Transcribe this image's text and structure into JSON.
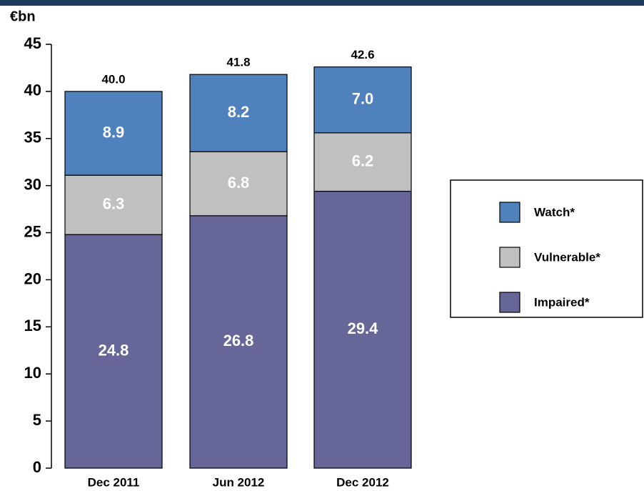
{
  "chart_data": {
    "type": "stacked_bar",
    "y_label": "€bn",
    "categories": [
      "Dec 2011",
      "Jun 2012",
      "Dec 2012"
    ],
    "series": [
      {
        "name": "Impaired*",
        "color": "#666699",
        "values": [
          24.8,
          26.8,
          29.4
        ],
        "value_labels": [
          "24.8",
          "26.8",
          "29.4"
        ]
      },
      {
        "name": "Vulnerable*",
        "color": "#c0c0c0",
        "values": [
          6.3,
          6.8,
          6.2
        ],
        "value_labels": [
          "6.3",
          "6.8",
          "6.2"
        ]
      },
      {
        "name": "Watch*",
        "color": "#4f81bd",
        "values": [
          8.9,
          8.2,
          7.0
        ],
        "value_labels": [
          "8.9",
          "8.2",
          "7.0"
        ]
      }
    ],
    "totals": [
      40,
      41.8,
      42.6
    ],
    "total_labels": [
      "40.0",
      "41.8",
      "42.6"
    ],
    "ylim": [
      0,
      45
    ],
    "yticks": [
      0,
      5,
      10,
      15,
      20,
      25,
      30,
      35,
      40,
      45
    ],
    "grid": false
  }
}
